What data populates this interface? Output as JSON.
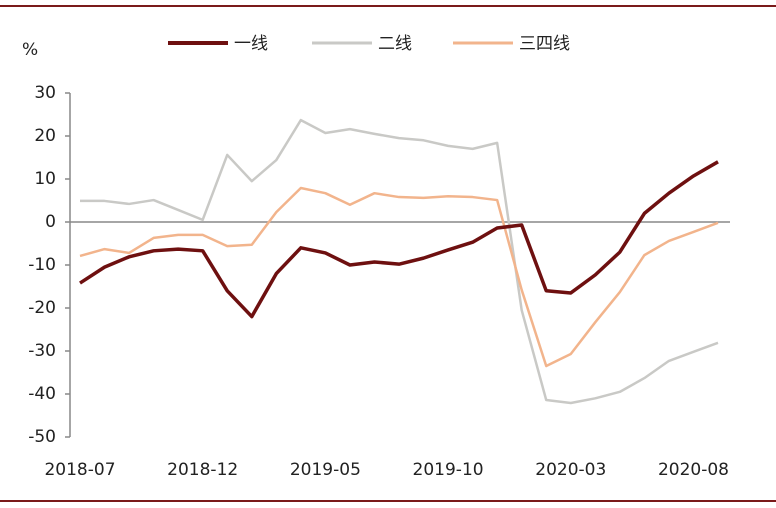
{
  "chart_data": {
    "type": "line",
    "y_label": "%",
    "categories": [
      "2018-07",
      null,
      null,
      null,
      null,
      "2018-12",
      null,
      null,
      null,
      null,
      "2019-05",
      null,
      null,
      null,
      null,
      "2019-10",
      null,
      null,
      null,
      null,
      "2020-03",
      null,
      null,
      null,
      null,
      "2020-08",
      null
    ],
    "series": [
      {
        "name": "一线",
        "color": "#6e1010",
        "values": [
          -14.2,
          -10.5,
          -8.1,
          -6.7,
          -6.3,
          -6.7,
          -16,
          -22,
          -12,
          -6,
          -7.2,
          -10,
          -9.3,
          -9.8,
          -8.4,
          -6.5,
          -4.7,
          -1.4,
          -0.7,
          -16,
          -16.5,
          -12.3,
          -7,
          2,
          6.7,
          10.7,
          14
        ]
      },
      {
        "name": "二线",
        "color": "#c9c9c6",
        "values": [
          4.9,
          4.9,
          4.2,
          5.1,
          2.8,
          0.5,
          15.6,
          9.5,
          14.4,
          23.7,
          20.7,
          21.6,
          20.5,
          19.5,
          19,
          17.7,
          17,
          18.4,
          -20.5,
          -41.4,
          -42.1,
          -41,
          -39.5,
          -36.3,
          -32.3,
          -30.2,
          -28.1
        ]
      },
      {
        "name": "三四线",
        "color": "#f2b48c",
        "values": [
          -7.9,
          -6.3,
          -7.2,
          -3.7,
          -3,
          -3,
          -5.6,
          -5.3,
          2.3,
          7.9,
          6.7,
          4,
          6.7,
          5.8,
          5.6,
          6,
          5.8,
          5.1,
          -15.8,
          -33.5,
          -30.7,
          -23.3,
          -16.3,
          -7.7,
          -4.4,
          -2.3,
          -0.2
        ]
      }
    ],
    "ylim": [
      -50,
      30
    ],
    "yticks": [
      -50,
      -40,
      -30,
      -20,
      -10,
      0,
      10,
      20,
      30
    ]
  }
}
